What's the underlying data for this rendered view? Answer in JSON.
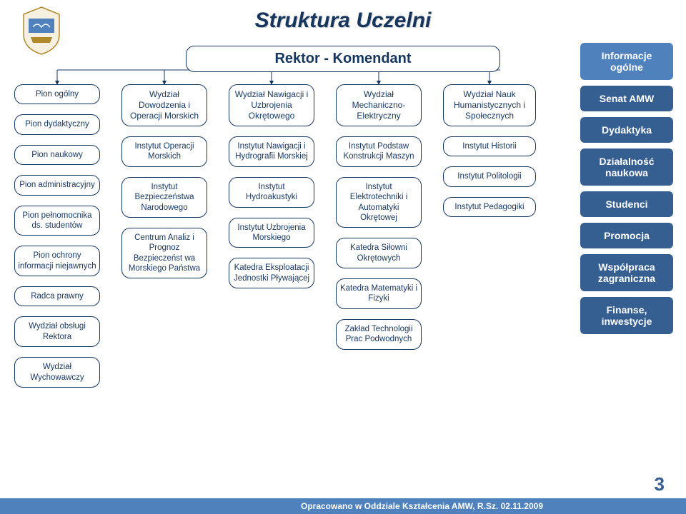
{
  "title": "Struktura Uczelni",
  "rector": "Rektor - Komendant",
  "columns": [
    {
      "head": null,
      "nodes": [
        "Pion ogólny",
        "Pion dydaktyczny",
        "Pion naukowy",
        "Pion administracyjny",
        "Pion pełnomocnika ds. studentów",
        "Pion ochrony informacji niejawnych",
        "Radca prawny",
        "Wydział obsługi Rektora",
        "Wydział Wychowawczy"
      ]
    },
    {
      "head": "Wydział Dowodzenia i Operacji Morskich",
      "nodes": [
        "Instytut Operacji Morskich",
        "Instytut Bezpieczeństwa Narodowego",
        "Centrum Analiz i Prognoz Bezpieczeńst wa Morskiego Państwa"
      ]
    },
    {
      "head": "Wydział Nawigacji i Uzbrojenia Okrętowego",
      "nodes": [
        "Instytut Nawigacji i Hydrografii Morskiej",
        "Instytut Hydroakustyki",
        "Instytut Uzbrojenia Morskiego",
        "Katedra Eksploatacji Jednostki Pływającej"
      ]
    },
    {
      "head": "Wydział Mechaniczno-Elektryczny",
      "nodes": [
        "Instytut Podstaw Konstrukcji Maszyn",
        "Instytut Elektrotechniki i Automatyki Okrętowej",
        "Katedra Siłowni Okrętowych",
        "Katedra Matematyki i Fizyki",
        "Zakład Technologii Prac Podwodnych"
      ]
    },
    {
      "head": "Wydział Nauk Humanistycznych i Społecznych",
      "nodes": [
        "Instytut Historii",
        "Instytut Politologii",
        "Instytut Pedagogiki"
      ]
    }
  ],
  "sidebar": [
    {
      "label": "Informacje ogólne",
      "active": true
    },
    {
      "label": "Senat AMW",
      "active": false
    },
    {
      "label": "Dydaktyka",
      "active": false
    },
    {
      "label": "Działalność naukowa",
      "active": false
    },
    {
      "label": "Studenci",
      "active": false
    },
    {
      "label": "Promocja",
      "active": false
    },
    {
      "label": "Współpraca zagraniczna",
      "active": false
    },
    {
      "label": "Finanse, inwestycje",
      "active": false
    }
  ],
  "footer": "Opracowano w Oddziale Kształcenia AMW,  R.Sz.  02.11.2009",
  "page": "3",
  "colors": {
    "navy": "#17365d",
    "blue_dark": "#365f91",
    "blue_light": "#4f81bd",
    "white": "#ffffff"
  }
}
